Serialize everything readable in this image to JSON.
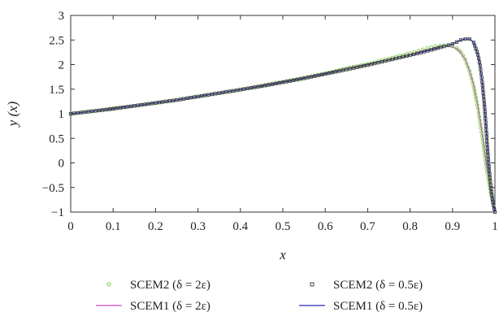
{
  "chart_data": {
    "type": "line",
    "xlabel": "x",
    "ylabel": "y (x)",
    "xlim": [
      0,
      1
    ],
    "ylim": [
      -1,
      3
    ],
    "xticks": [
      "0",
      "0.1",
      "0.2",
      "0.3",
      "0.4",
      "0.5",
      "0.6",
      "0.7",
      "0.8",
      "0.9",
      "1"
    ],
    "yticks": [
      "3",
      "2.5",
      "2",
      "1.5",
      "1",
      "0.5",
      "0",
      "−0.5",
      "−1"
    ],
    "grid": false,
    "legend_position": "bottom-outside",
    "series": [
      {
        "name": "SCEM2 (δ = 2ε)",
        "style": "circle-markers",
        "color": "#7ac943",
        "x": [
          0,
          0.05,
          0.1,
          0.15,
          0.2,
          0.25,
          0.3,
          0.35,
          0.4,
          0.45,
          0.5,
          0.55,
          0.6,
          0.65,
          0.7,
          0.75,
          0.8,
          0.82,
          0.84,
          0.86,
          0.87,
          0.88,
          0.89,
          0.9,
          0.91,
          0.92,
          0.93,
          0.94,
          0.95,
          0.96,
          0.97,
          0.98,
          0.99,
          1.0
        ],
        "y": [
          1.0,
          1.05,
          1.11,
          1.16,
          1.22,
          1.28,
          1.35,
          1.42,
          1.49,
          1.57,
          1.65,
          1.73,
          1.82,
          1.92,
          2.01,
          2.12,
          2.23,
          2.28,
          2.33,
          2.37,
          2.38,
          2.39,
          2.39,
          2.37,
          2.33,
          2.25,
          2.1,
          1.87,
          1.55,
          1.1,
          0.55,
          -0.1,
          -0.6,
          -1.0
        ]
      },
      {
        "name": "SCEM1 (δ = 2ε)",
        "style": "line",
        "color": "#cc44cc",
        "x": [
          0,
          0.05,
          0.1,
          0.15,
          0.2,
          0.25,
          0.3,
          0.35,
          0.4,
          0.45,
          0.5,
          0.55,
          0.6,
          0.65,
          0.7,
          0.75,
          0.8,
          0.82,
          0.84,
          0.86,
          0.87,
          0.88,
          0.89,
          0.9,
          0.91,
          0.92,
          0.93,
          0.94,
          0.95,
          0.96,
          0.97,
          0.98,
          0.99,
          1.0
        ],
        "y": [
          1.0,
          1.05,
          1.11,
          1.16,
          1.22,
          1.28,
          1.35,
          1.42,
          1.49,
          1.57,
          1.65,
          1.73,
          1.82,
          1.91,
          2.0,
          2.1,
          2.2,
          2.25,
          2.3,
          2.34,
          2.36,
          2.37,
          2.37,
          2.36,
          2.32,
          2.24,
          2.1,
          1.88,
          1.58,
          1.15,
          0.6,
          -0.05,
          -0.55,
          -1.0
        ]
      },
      {
        "name": "SCEM2 (δ = 0.5ε)",
        "style": "square-markers",
        "color": "#333333",
        "x": [
          0,
          0.05,
          0.1,
          0.15,
          0.2,
          0.25,
          0.3,
          0.35,
          0.4,
          0.45,
          0.5,
          0.55,
          0.6,
          0.65,
          0.7,
          0.75,
          0.8,
          0.85,
          0.88,
          0.9,
          0.91,
          0.92,
          0.93,
          0.94,
          0.95,
          0.96,
          0.965,
          0.97,
          0.975,
          0.98,
          0.985,
          0.99,
          0.995,
          1.0
        ],
        "y": [
          1.0,
          1.05,
          1.1,
          1.16,
          1.22,
          1.28,
          1.35,
          1.42,
          1.49,
          1.56,
          1.64,
          1.72,
          1.81,
          1.9,
          1.99,
          2.09,
          2.19,
          2.3,
          2.37,
          2.42,
          2.46,
          2.5,
          2.52,
          2.52,
          2.45,
          2.2,
          1.98,
          1.65,
          1.2,
          0.6,
          0.0,
          -0.45,
          -0.8,
          -1.0
        ]
      },
      {
        "name": "SCEM1 (δ = 0.5ε)",
        "style": "line",
        "color": "#2233aa",
        "x": [
          0,
          0.05,
          0.1,
          0.15,
          0.2,
          0.25,
          0.3,
          0.35,
          0.4,
          0.45,
          0.5,
          0.55,
          0.6,
          0.65,
          0.7,
          0.75,
          0.8,
          0.85,
          0.88,
          0.9,
          0.91,
          0.92,
          0.93,
          0.94,
          0.95,
          0.96,
          0.965,
          0.97,
          0.975,
          0.98,
          0.985,
          0.99,
          0.995,
          1.0
        ],
        "y": [
          1.0,
          1.05,
          1.1,
          1.16,
          1.22,
          1.28,
          1.35,
          1.42,
          1.49,
          1.56,
          1.64,
          1.72,
          1.81,
          1.9,
          1.99,
          2.09,
          2.19,
          2.3,
          2.37,
          2.42,
          2.46,
          2.5,
          2.52,
          2.52,
          2.45,
          2.2,
          1.98,
          1.65,
          1.2,
          0.6,
          0.0,
          -0.45,
          -0.8,
          -1.0
        ]
      }
    ]
  }
}
